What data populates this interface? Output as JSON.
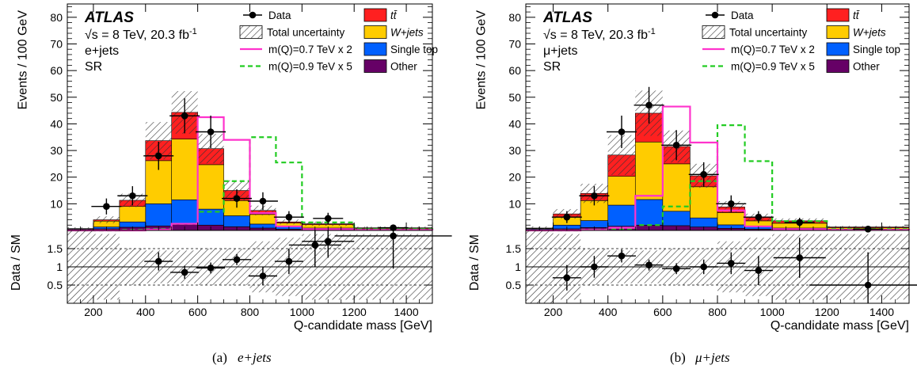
{
  "chart_data": [
    {
      "type": "bar",
      "panel": "a",
      "caption_label": "(a)",
      "caption_text": "e+jets",
      "atlas_label": "ATLAS",
      "energy_label": "√s = 8 TeV, 20.3 fb",
      "lumi_unit_sup": "-1",
      "channel_label": "e+jets",
      "region_label": "SR",
      "ylabel": "Events / 100 GeV",
      "ratio_ylabel": "Data / SM",
      "xlabel": "Q-candidate mass [GeV]",
      "xlim": [
        100,
        1500
      ],
      "ylim": [
        0,
        85
      ],
      "ratio_ylim": [
        0.0,
        2.0
      ],
      "xticks": [
        200,
        400,
        600,
        800,
        1000,
        1200,
        1400
      ],
      "yticks": [
        10,
        20,
        30,
        40,
        50,
        60,
        70,
        80
      ],
      "ratio_yticks": [
        0.5,
        1,
        1.5
      ],
      "bin_edges": [
        100,
        200,
        300,
        400,
        500,
        600,
        700,
        800,
        900,
        1000,
        1200,
        1500
      ],
      "stack": [
        {
          "name": "Other",
          "color": "#660066",
          "values": [
            0.3,
            0.6,
            1.2,
            1.7,
            2.2,
            2.0,
            1.4,
            0.9,
            0.5,
            0.4,
            0.2
          ]
        },
        {
          "name": "Single top",
          "color": "#0060ff",
          "values": [
            0.2,
            0.7,
            2.0,
            8.3,
            9.3,
            6.0,
            4.1,
            1.5,
            0.8,
            0.5,
            0.3
          ]
        },
        {
          "name": "W+jets",
          "color": "#ffcc00",
          "values": [
            0.1,
            2.2,
            5.8,
            16.2,
            22.8,
            16.7,
            5.7,
            3.6,
            1.5,
            1.3,
            0.3
          ]
        },
        {
          "name": "tt̄",
          "color": "#ff2020",
          "values": [
            0.1,
            0.5,
            2.3,
            7.5,
            10.0,
            6.0,
            3.8,
            1.5,
            0.4,
            0.3,
            0.2
          ]
        }
      ],
      "uncertainty": [
        0.5,
        1.3,
        2.5,
        7.0,
        8.0,
        5.5,
        3.8,
        1.8,
        0.9,
        0.8,
        0.4
      ],
      "data": [
        {
          "x": 250,
          "y": 9
        },
        {
          "x": 350,
          "y": 13
        },
        {
          "x": 450,
          "y": 28
        },
        {
          "x": 550,
          "y": 43
        },
        {
          "x": 650,
          "y": 37
        },
        {
          "x": 750,
          "y": 12
        },
        {
          "x": 850,
          "y": 11
        },
        {
          "x": 950,
          "y": 5
        },
        {
          "x": 1100,
          "y": 4.5
        },
        {
          "x": 1350,
          "y": 1
        }
      ],
      "signal_07": {
        "name": "m(Q)=0.7 TeV x 2",
        "color": "#ff33cc",
        "values": [
          0,
          0,
          0,
          0.3,
          2.5,
          42.5,
          34.0,
          6.5,
          1.5,
          0.5,
          0.2
        ]
      },
      "signal_09": {
        "name": "m(Q)=0.9 TeV x 5",
        "color": "#22cc22",
        "values": [
          0,
          0,
          0.2,
          0.5,
          2.5,
          7.0,
          18.5,
          35.0,
          25.5,
          3.0,
          0.5
        ]
      },
      "ratio": [
        {
          "x": 450,
          "y": 1.15
        },
        {
          "x": 550,
          "y": 0.85
        },
        {
          "x": 650,
          "y": 0.97
        },
        {
          "x": 750,
          "y": 1.2
        },
        {
          "x": 850,
          "y": 0.75
        },
        {
          "x": 950,
          "y": 1.15
        },
        {
          "x": 1050,
          "y": 1.6
        },
        {
          "x": 1100,
          "y": 1.7
        },
        {
          "x": 1350,
          "y": 1.85
        }
      ],
      "ratio_err": [
        0.25,
        0.18,
        0.15,
        0.15,
        0.25,
        0.35,
        0.6,
        0.45,
        0.9
      ],
      "ratio_band": [
        1.0,
        0.9,
        0.5,
        0.45,
        0.45,
        0.5,
        0.5,
        0.7,
        0.8,
        0.9,
        0.9
      ]
    },
    {
      "type": "bar",
      "panel": "b",
      "caption_label": "(b)",
      "caption_text": "μ+jets",
      "atlas_label": "ATLAS",
      "energy_label": "√s = 8 TeV, 20.3 fb",
      "lumi_unit_sup": "-1",
      "channel_label": "μ+jets",
      "region_label": "SR",
      "ylabel": "Events / 100 GeV",
      "ratio_ylabel": "Data / SM",
      "xlabel": "Q-candidate mass [GeV]",
      "xlim": [
        100,
        1500
      ],
      "ylim": [
        0,
        85
      ],
      "ratio_ylim": [
        0.0,
        2.0
      ],
      "xticks": [
        200,
        400,
        600,
        800,
        1000,
        1200,
        1400
      ],
      "yticks": [
        10,
        20,
        30,
        40,
        50,
        60,
        70,
        80
      ],
      "ratio_yticks": [
        0.5,
        1,
        1.5
      ],
      "bin_edges": [
        100,
        200,
        300,
        400,
        500,
        600,
        700,
        800,
        900,
        1000,
        1200,
        1500
      ],
      "stack": [
        {
          "name": "Other",
          "color": "#660066",
          "values": [
            0.3,
            0.6,
            1.1,
            1.6,
            2.0,
            1.8,
            1.3,
            0.8,
            0.5,
            0.4,
            0.2
          ]
        },
        {
          "name": "Single top",
          "color": "#0060ff",
          "values": [
            0.3,
            1.4,
            2.6,
            7.9,
            9.6,
            5.4,
            3.4,
            1.3,
            0.8,
            0.5,
            0.3
          ]
        },
        {
          "name": "W+jets",
          "color": "#ffcc00",
          "values": [
            0.2,
            3.0,
            7.5,
            10.8,
            21.6,
            17.8,
            11.7,
            4.6,
            2.3,
            1.8,
            0.5
          ]
        },
        {
          "name": "tt̄",
          "color": "#ff2020",
          "values": [
            0.1,
            1.2,
            2.7,
            8.0,
            10.8,
            6.5,
            4.1,
            2.1,
            1.4,
            0.9,
            0.3
          ]
        }
      ],
      "uncertainty": [
        0.6,
        1.8,
        3.6,
        7.5,
        8.5,
        6.0,
        4.5,
        2.2,
        1.3,
        0.9,
        0.4
      ],
      "data": [
        {
          "x": 250,
          "y": 5
        },
        {
          "x": 350,
          "y": 13
        },
        {
          "x": 450,
          "y": 37
        },
        {
          "x": 550,
          "y": 47
        },
        {
          "x": 650,
          "y": 32
        },
        {
          "x": 750,
          "y": 21
        },
        {
          "x": 850,
          "y": 10
        },
        {
          "x": 950,
          "y": 5
        },
        {
          "x": 1100,
          "y": 3
        },
        {
          "x": 1350,
          "y": 0.5
        }
      ],
      "signal_07": {
        "name": "m(Q)=0.7 TeV x 2",
        "color": "#ff33cc",
        "values": [
          0,
          0,
          0.2,
          1.0,
          13.0,
          46.5,
          33.0,
          7.5,
          1.5,
          0.5,
          0.2
        ]
      },
      "signal_09": {
        "name": "m(Q)=0.9 TeV x 5",
        "color": "#22cc22",
        "values": [
          0,
          0,
          0.3,
          0.6,
          2.0,
          9.0,
          18.5,
          39.5,
          26.0,
          3.5,
          0.5
        ]
      },
      "ratio": [
        {
          "x": 250,
          "y": 0.7
        },
        {
          "x": 350,
          "y": 1.0
        },
        {
          "x": 450,
          "y": 1.3
        },
        {
          "x": 550,
          "y": 1.05
        },
        {
          "x": 650,
          "y": 0.95
        },
        {
          "x": 750,
          "y": 1.0
        },
        {
          "x": 850,
          "y": 1.1
        },
        {
          "x": 950,
          "y": 0.9
        },
        {
          "x": 1100,
          "y": 1.25
        },
        {
          "x": 1350,
          "y": 0.5
        }
      ],
      "ratio_err": [
        0.35,
        0.3,
        0.18,
        0.15,
        0.15,
        0.2,
        0.3,
        0.4,
        0.55,
        0.9
      ],
      "ratio_band": [
        1.0,
        0.9,
        0.5,
        0.45,
        0.45,
        0.5,
        0.5,
        0.7,
        0.8,
        0.9,
        0.9
      ]
    }
  ],
  "legend": {
    "data_label": "Data",
    "unc_label": "Total uncertainty",
    "sig07_label": "m(Q)=0.7 TeV x 2",
    "sig09_label": "m(Q)=0.9 TeV x 5",
    "ttbar_label": "tt̄",
    "wjets_label": "W+jets",
    "singletop_label": "Single top",
    "other_label": "Other"
  },
  "colors": {
    "ttbar": "#ff2020",
    "wjets": "#ffcc00",
    "singletop": "#0060ff",
    "other": "#660066",
    "sig07": "#ff33cc",
    "sig09": "#22cc22"
  }
}
